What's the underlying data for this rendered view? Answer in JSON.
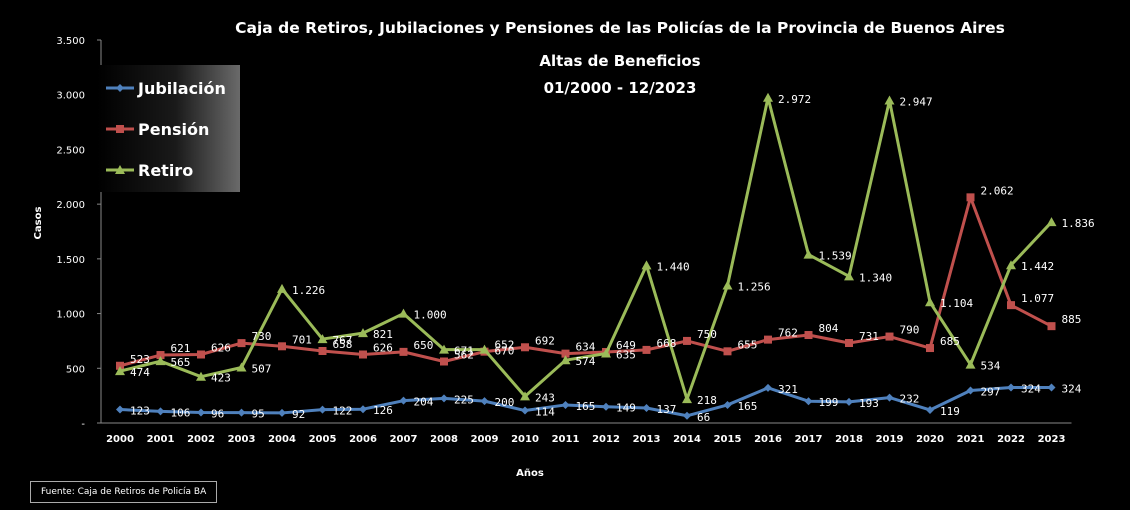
{
  "chart_data": {
    "type": "line",
    "title": "Caja de Retiros, Jubilaciones y Pensiones de las Policías de la Provincia de Buenos Aires",
    "subtitle_line1": "Altas de Beneficios",
    "subtitle_line2": "01/2000 - 12/2023",
    "xlabel": "Años",
    "ylabel": "Casos",
    "ylim": [
      0,
      3500
    ],
    "y_ticks": [
      {
        "value": 0,
        "label": "-"
      },
      {
        "value": 500,
        "label": "500"
      },
      {
        "value": 1000,
        "label": "1.000"
      },
      {
        "value": 1500,
        "label": "1.500"
      },
      {
        "value": 2000,
        "label": "2.000"
      },
      {
        "value": 2500,
        "label": "2.500"
      },
      {
        "value": 3000,
        "label": "3.000"
      },
      {
        "value": 3500,
        "label": "3.500"
      }
    ],
    "grid": false,
    "legend_position": "top-left",
    "categories": [
      "2000",
      "2001",
      "2002",
      "2003",
      "2004",
      "2005",
      "2006",
      "2007",
      "2008",
      "2009",
      "2010",
      "2011",
      "2012",
      "2013",
      "2014",
      "2015",
      "2016",
      "2017",
      "2018",
      "2019",
      "2020",
      "2021",
      "2022",
      "2023"
    ],
    "series": [
      {
        "name": "Jubilación",
        "color": "#4F81BD",
        "marker": "diamond",
        "values": [
          123,
          106,
          96,
          95,
          92,
          122,
          126,
          204,
          225,
          200,
          114,
          165,
          149,
          137,
          66,
          165,
          321,
          199,
          193,
          232,
          119,
          297,
          324,
          324
        ],
        "labels": [
          "123",
          "106",
          "96",
          "95",
          "92",
          "122",
          "126",
          "204",
          "225",
          "200",
          "114",
          "165",
          "149",
          "137",
          "66",
          "165",
          "321",
          "199",
          "193",
          "232",
          "119",
          "297",
          "324",
          "324"
        ]
      },
      {
        "name": "Pensión",
        "color": "#C0504D",
        "marker": "square",
        "values": [
          523,
          621,
          626,
          730,
          701,
          658,
          626,
          650,
          562,
          652,
          692,
          634,
          649,
          668,
          750,
          655,
          762,
          804,
          731,
          790,
          685,
          2062,
          1077,
          885
        ],
        "labels": [
          "523",
          "621",
          "626",
          "730",
          "701",
          "658",
          "626",
          "650",
          "562",
          "652",
          "692",
          "634",
          "649",
          "668",
          "750",
          "655",
          "762",
          "804",
          "731",
          "790",
          "685",
          "2.062",
          "1.077",
          "885"
        ]
      },
      {
        "name": "Retiro",
        "color": "#9BBB59",
        "marker": "triangle",
        "values": [
          474,
          565,
          423,
          507,
          1226,
          767,
          821,
          1000,
          671,
          670,
          243,
          574,
          635,
          1440,
          218,
          1256,
          2972,
          1539,
          1340,
          2947,
          1104,
          534,
          1442,
          1836
        ],
        "labels": [
          "474",
          "565",
          "423",
          "507",
          "1.226",
          "767",
          "821",
          "1.000",
          "671",
          "670",
          "243",
          "574",
          "635",
          "1.440",
          "218",
          "1.256",
          "2.972",
          "1.539",
          "1.340",
          "2.947",
          "1.104",
          "534",
          "1.442",
          "1.836"
        ]
      }
    ]
  },
  "source_note": "Fuente: Caja de Retiros de Policía BA"
}
